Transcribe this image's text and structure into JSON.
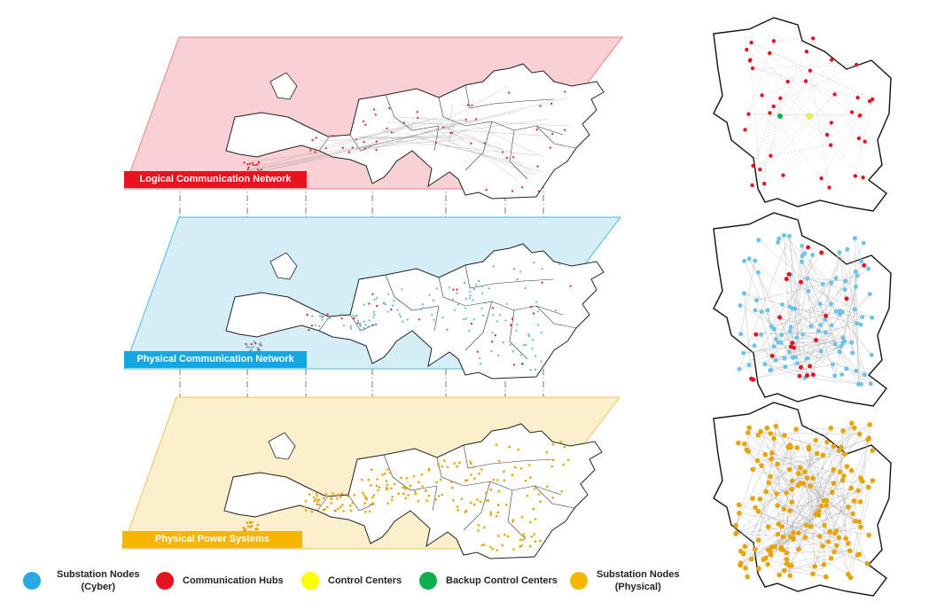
{
  "layers": [
    {
      "label": "Logical Communication Network",
      "plane_color": "#f9d0d3",
      "plane_border": "#ef7f87",
      "label_bg": "#e8131f",
      "node_color": "#e8131f"
    },
    {
      "label": "Physical Communication Network",
      "plane_color": "#d4eef8",
      "plane_border": "#4ab8e8",
      "label_bg": "#16a7e2",
      "node_color": "#5ab8e0"
    },
    {
      "label": "Physical Power Systems",
      "plane_color": "#fcefcc",
      "plane_border": "#f4c25a",
      "label_bg": "#f7b500",
      "node_color": "#e7a300"
    }
  ],
  "legend": [
    {
      "label": "Substation Nodes\n(Cyber)",
      "color": "#27a9e1"
    },
    {
      "label": "Communication Hubs",
      "color": "#e8131f"
    },
    {
      "label": "Control Centers",
      "color": "#ffff00"
    },
    {
      "label": "Backup Control Centers",
      "color": "#0eaf4e"
    },
    {
      "label": "Substation Nodes\n(Physical)",
      "color": "#f7b500"
    }
  ]
}
